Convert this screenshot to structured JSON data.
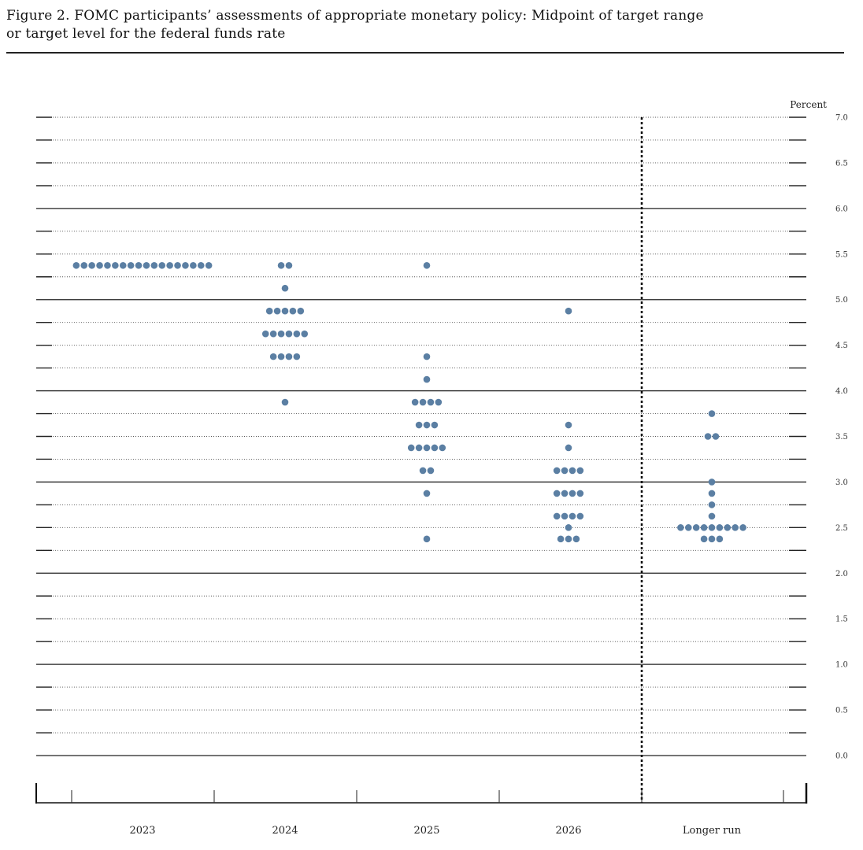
{
  "figure": {
    "title_line1": "Figure 2.  FOMC participants’ assessments of appropriate monetary policy:  Midpoint of target range",
    "title_line2": "or target level for the federal funds rate"
  },
  "chart_data": {
    "type": "scatter",
    "subtype": "dot-plot",
    "ylabel": "Percent",
    "ylim": [
      0,
      7
    ],
    "yticks": [
      {
        "value": 7.0,
        "label": "7.0"
      },
      {
        "value": 6.5,
        "label": "6.5"
      },
      {
        "value": 6.0,
        "label": "6.0"
      },
      {
        "value": 5.5,
        "label": "5.5"
      },
      {
        "value": 5.0,
        "label": "5.0"
      },
      {
        "value": 4.5,
        "label": "4.5"
      },
      {
        "value": 4.0,
        "label": "4.0"
      },
      {
        "value": 3.5,
        "label": "3.5"
      },
      {
        "value": 3.0,
        "label": "3.0"
      },
      {
        "value": 2.5,
        "label": "2.5"
      },
      {
        "value": 2.0,
        "label": "2.0"
      },
      {
        "value": 1.5,
        "label": "1.5"
      },
      {
        "value": 1.0,
        "label": "1.0"
      },
      {
        "value": 0.5,
        "label": "0.5"
      },
      {
        "value": 0.0,
        "label": "0.0"
      }
    ],
    "categories": [
      "2023",
      "2024",
      "2025",
      "2026",
      "Longer run"
    ],
    "dot_color": "#5b7fa3",
    "grid": "dotted every 0.25, solid every 1.0",
    "divider_after": "2026",
    "points": [
      {
        "category": "2023",
        "y": 5.375,
        "count": 18
      },
      {
        "category": "2024",
        "y": 5.375,
        "count": 2
      },
      {
        "category": "2024",
        "y": 5.125,
        "count": 1
      },
      {
        "category": "2024",
        "y": 4.875,
        "count": 5
      },
      {
        "category": "2024",
        "y": 4.625,
        "count": 6
      },
      {
        "category": "2024",
        "y": 4.375,
        "count": 4
      },
      {
        "category": "2024",
        "y": 3.875,
        "count": 1
      },
      {
        "category": "2025",
        "y": 5.375,
        "count": 1
      },
      {
        "category": "2025",
        "y": 4.375,
        "count": 1
      },
      {
        "category": "2025",
        "y": 4.125,
        "count": 1
      },
      {
        "category": "2025",
        "y": 3.875,
        "count": 4
      },
      {
        "category": "2025",
        "y": 3.625,
        "count": 3
      },
      {
        "category": "2025",
        "y": 3.375,
        "count": 5
      },
      {
        "category": "2025",
        "y": 3.125,
        "count": 2
      },
      {
        "category": "2025",
        "y": 2.875,
        "count": 1
      },
      {
        "category": "2025",
        "y": 2.375,
        "count": 1
      },
      {
        "category": "2026",
        "y": 4.875,
        "count": 1
      },
      {
        "category": "2026",
        "y": 3.625,
        "count": 1
      },
      {
        "category": "2026",
        "y": 3.375,
        "count": 1
      },
      {
        "category": "2026",
        "y": 3.125,
        "count": 4
      },
      {
        "category": "2026",
        "y": 2.875,
        "count": 4
      },
      {
        "category": "2026",
        "y": 2.625,
        "count": 4
      },
      {
        "category": "2026",
        "y": 2.5,
        "count": 1
      },
      {
        "category": "2026",
        "y": 2.375,
        "count": 3
      },
      {
        "category": "Longer run",
        "y": 3.75,
        "count": 1
      },
      {
        "category": "Longer run",
        "y": 3.5,
        "count": 2
      },
      {
        "category": "Longer run",
        "y": 3.0,
        "count": 1
      },
      {
        "category": "Longer run",
        "y": 2.875,
        "count": 1
      },
      {
        "category": "Longer run",
        "y": 2.75,
        "count": 1
      },
      {
        "category": "Longer run",
        "y": 2.625,
        "count": 1
      },
      {
        "category": "Longer run",
        "y": 2.5,
        "count": 9
      },
      {
        "category": "Longer run",
        "y": 2.375,
        "count": 3
      }
    ]
  }
}
